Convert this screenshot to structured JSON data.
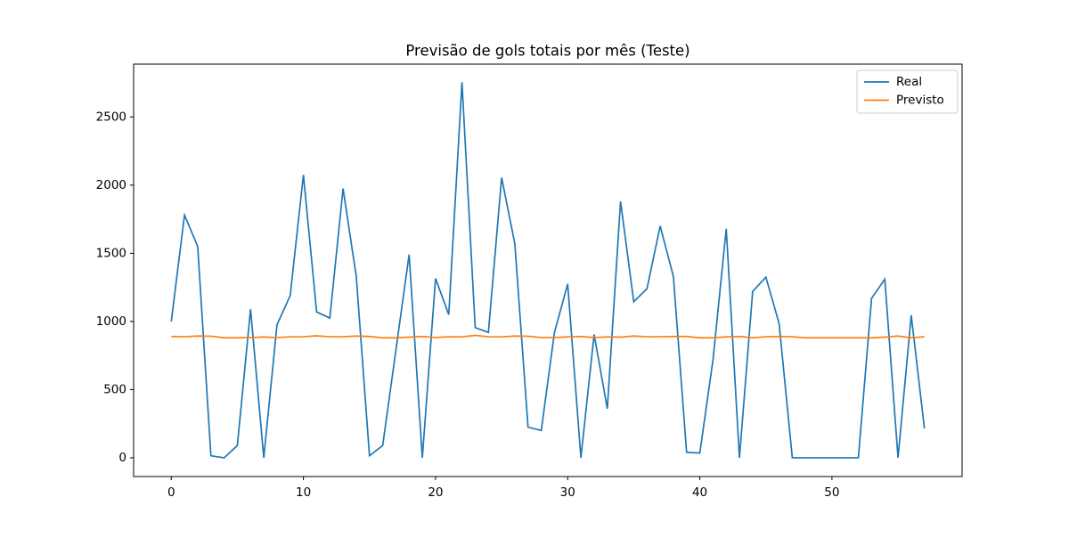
{
  "chart_data": {
    "type": "line",
    "title": "Previsão de gols totais por mês (Teste)",
    "x": [
      0,
      1,
      2,
      3,
      4,
      5,
      6,
      7,
      8,
      9,
      10,
      11,
      12,
      13,
      14,
      15,
      16,
      17,
      18,
      19,
      20,
      21,
      22,
      23,
      24,
      25,
      26,
      27,
      28,
      29,
      30,
      31,
      32,
      33,
      34,
      35,
      36,
      37,
      38,
      39,
      40,
      41,
      42,
      43,
      44,
      45,
      46,
      47,
      48,
      49,
      50,
      51,
      52,
      53,
      54,
      55,
      56,
      57
    ],
    "series": [
      {
        "name": "Real",
        "color": "#1f77b4",
        "values": [
          1000,
          1780,
          1550,
          15,
          0,
          90,
          1090,
          0,
          975,
          1190,
          2075,
          1070,
          1025,
          1975,
          1330,
          15,
          90,
          790,
          1490,
          0,
          1315,
          1050,
          2755,
          955,
          920,
          2055,
          1570,
          225,
          200,
          920,
          1275,
          0,
          905,
          360,
          1880,
          1145,
          1240,
          1700,
          1330,
          40,
          35,
          720,
          1680,
          0,
          1220,
          1325,
          985,
          0,
          0,
          0,
          0,
          0,
          0,
          1170,
          1310,
          0,
          1045,
          215
        ]
      },
      {
        "name": "Previsto",
        "color": "#ff7f0e",
        "values": [
          890,
          888,
          893,
          892,
          880,
          880,
          882,
          886,
          882,
          887,
          888,
          895,
          888,
          888,
          893,
          890,
          880,
          880,
          885,
          890,
          882,
          888,
          887,
          898,
          888,
          887,
          893,
          892,
          882,
          882,
          887,
          890,
          882,
          887,
          885,
          893,
          888,
          888,
          890,
          890,
          880,
          880,
          887,
          890,
          880,
          888,
          890,
          888,
          880,
          880,
          880,
          880,
          880,
          880,
          885,
          893,
          880,
          888
        ]
      }
    ],
    "xlim": [
      -2.85,
      59.85
    ],
    "xticks": [
      0,
      10,
      20,
      30,
      40,
      50
    ],
    "ylim": [
      -137.5,
      2887.5
    ],
    "yticks": [
      0,
      500,
      1000,
      1500,
      2000,
      2500
    ],
    "grid": false,
    "legend": "upper right"
  }
}
